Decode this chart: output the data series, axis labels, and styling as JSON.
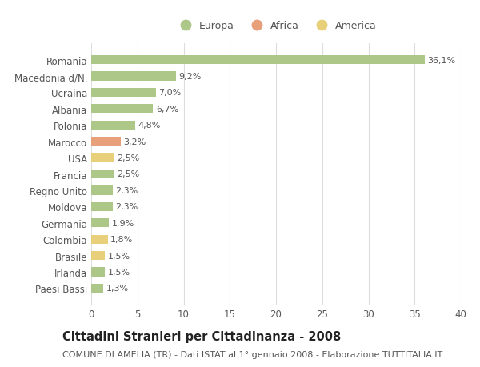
{
  "countries": [
    "Romania",
    "Macedonia d/N.",
    "Ucraina",
    "Albania",
    "Polonia",
    "Marocco",
    "USA",
    "Francia",
    "Regno Unito",
    "Moldova",
    "Germania",
    "Colombia",
    "Brasile",
    "Irlanda",
    "Paesi Bassi"
  ],
  "values": [
    36.1,
    9.2,
    7.0,
    6.7,
    4.8,
    3.2,
    2.5,
    2.5,
    2.3,
    2.3,
    1.9,
    1.8,
    1.5,
    1.5,
    1.3
  ],
  "labels": [
    "36,1%",
    "9,2%",
    "7,0%",
    "6,7%",
    "4,8%",
    "3,2%",
    "2,5%",
    "2,5%",
    "2,3%",
    "2,3%",
    "1,9%",
    "1,8%",
    "1,5%",
    "1,5%",
    "1,3%"
  ],
  "continents": [
    "Europa",
    "Europa",
    "Europa",
    "Europa",
    "Europa",
    "Africa",
    "America",
    "Europa",
    "Europa",
    "Europa",
    "Europa",
    "America",
    "America",
    "Europa",
    "Europa"
  ],
  "colors": {
    "Europa": "#adc788",
    "Africa": "#e8a07a",
    "America": "#e8d07a"
  },
  "legend_order": [
    "Europa",
    "Africa",
    "America"
  ],
  "legend_colors": {
    "Europa": "#adc788",
    "Africa": "#e8a07a",
    "America": "#e8d07a"
  },
  "title": "Cittadini Stranieri per Cittadinanza - 2008",
  "subtitle": "COMUNE DI AMELIA (TR) - Dati ISTAT al 1° gennaio 2008 - Elaborazione TUTTITALIA.IT",
  "xlim": [
    0,
    40
  ],
  "xticks": [
    0,
    5,
    10,
    15,
    20,
    25,
    30,
    35,
    40
  ],
  "background_color": "#ffffff",
  "grid_color": "#dddddd",
  "bar_height": 0.55,
  "label_fontsize": 8.0,
  "title_fontsize": 10.5,
  "subtitle_fontsize": 8.0,
  "ytick_fontsize": 8.5,
  "xtick_fontsize": 8.5,
  "text_color": "#555555",
  "title_color": "#222222"
}
